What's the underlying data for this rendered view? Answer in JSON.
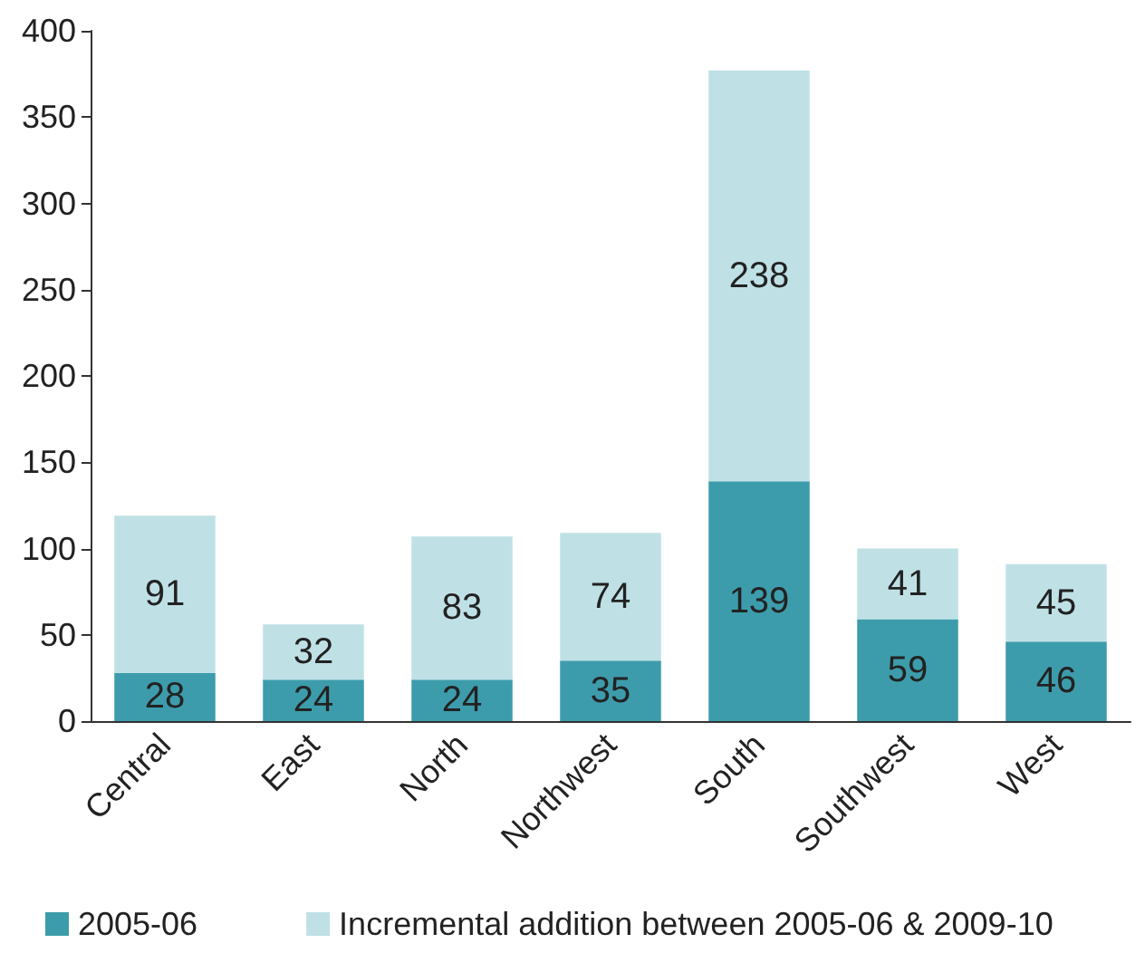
{
  "chart_data": {
    "type": "bar",
    "stacked": true,
    "categories": [
      "Central",
      "East",
      "North",
      "Northwest",
      "South",
      "Southwest",
      "West"
    ],
    "series": [
      {
        "name": "2005-06",
        "color": "#3d9cab",
        "values": [
          28,
          24,
          24,
          35,
          139,
          59,
          46
        ]
      },
      {
        "name": "Incremental addition between 2005-06 & 2009-10",
        "color": "#bfe1e6",
        "values": [
          91,
          32,
          83,
          74,
          238,
          41,
          45
        ]
      }
    ],
    "ylim": [
      0,
      400
    ],
    "yticks": [
      0,
      50,
      100,
      150,
      200,
      250,
      300,
      350,
      400
    ],
    "data_labels": true,
    "grid": false,
    "legend": "bottom"
  }
}
